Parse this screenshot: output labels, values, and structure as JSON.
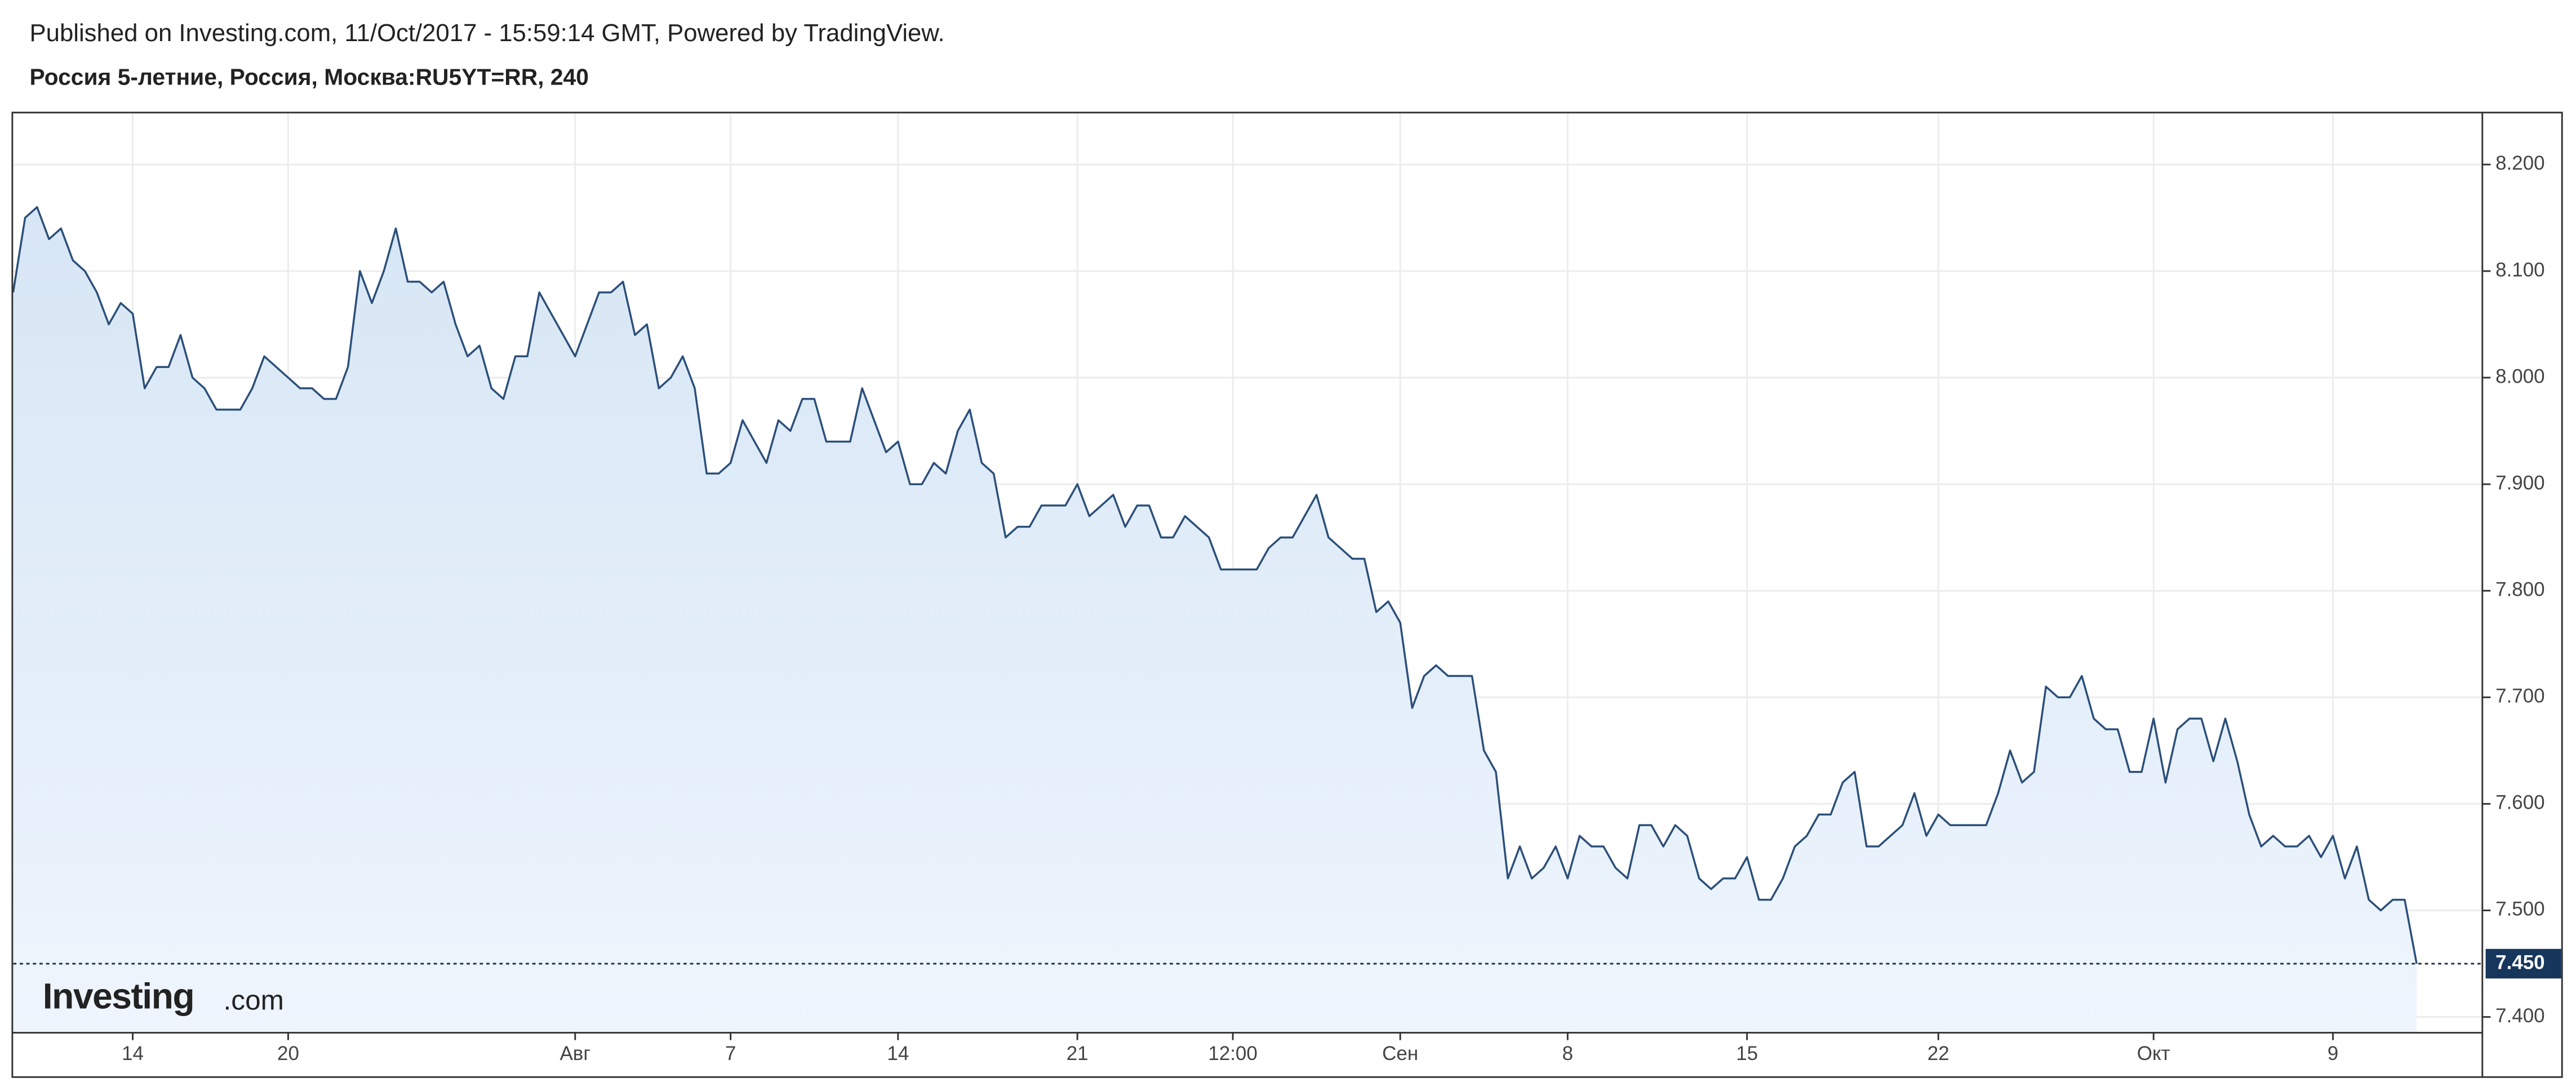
{
  "header": "Published on Investing.com, 11/Oct/2017 - 15:59:14 GMT, Powered by TradingView.",
  "logo": {
    "brand": "Investing",
    "suffix": ".com"
  },
  "chart_data": {
    "type": "line",
    "title": "Россия 5-летние, Россия, Москва:RU5YT=RR, 240",
    "categories": [
      null,
      null,
      null,
      null,
      null,
      null,
      null,
      null,
      null,
      null,
      "14",
      null,
      null,
      null,
      null,
      null,
      null,
      null,
      null,
      null,
      null,
      null,
      null,
      "20",
      null,
      null,
      null,
      null,
      null,
      null,
      null,
      null,
      null,
      null,
      null,
      null,
      null,
      null,
      null,
      null,
      null,
      null,
      null,
      null,
      null,
      null,
      null,
      "Авг",
      null,
      null,
      null,
      null,
      null,
      null,
      null,
      null,
      null,
      null,
      null,
      null,
      "7",
      null,
      null,
      null,
      null,
      null,
      null,
      null,
      null,
      null,
      null,
      null,
      null,
      null,
      "14",
      null,
      null,
      null,
      null,
      null,
      null,
      null,
      null,
      null,
      null,
      null,
      null,
      null,
      null,
      "21",
      null,
      null,
      null,
      null,
      null,
      null,
      null,
      null,
      null,
      null,
      null,
      null,
      "12:00",
      null,
      null,
      null,
      null,
      null,
      null,
      null,
      null,
      null,
      null,
      null,
      null,
      null,
      "Сен",
      null,
      null,
      null,
      null,
      null,
      null,
      null,
      null,
      null,
      null,
      null,
      null,
      null,
      "8",
      null,
      null,
      null,
      null,
      null,
      null,
      null,
      null,
      null,
      null,
      null,
      null,
      null,
      null,
      "15",
      null,
      null,
      null,
      null,
      null,
      null,
      null,
      null,
      null,
      null,
      null,
      null,
      null,
      null,
      null,
      "22",
      null,
      null,
      null,
      null,
      null,
      null,
      null,
      null,
      null,
      null,
      null,
      null,
      null,
      null,
      null,
      null,
      null,
      "Окт",
      null,
      null,
      null,
      null,
      null,
      null,
      null,
      null,
      null,
      null,
      null,
      null,
      null,
      null,
      "9",
      null,
      null,
      null,
      null,
      null,
      null,
      null
    ],
    "series": [
      {
        "color": "#2b4f7a",
        "values": [
          8.08,
          8.15,
          8.16,
          8.13,
          8.14,
          8.11,
          8.1,
          8.08,
          8.05,
          8.07,
          8.06,
          7.99,
          8.01,
          8.01,
          8.04,
          8.0,
          7.99,
          7.97,
          7.97,
          7.97,
          7.99,
          8.02,
          8.01,
          8.0,
          7.99,
          7.99,
          7.98,
          7.98,
          8.01,
          8.1,
          8.07,
          8.1,
          8.14,
          8.09,
          8.09,
          8.08,
          8.09,
          8.05,
          8.02,
          8.03,
          7.99,
          7.98,
          8.02,
          8.02,
          8.08,
          8.06,
          8.04,
          8.02,
          8.05,
          8.08,
          8.08,
          8.09,
          8.04,
          8.05,
          7.99,
          8.0,
          8.02,
          7.99,
          7.91,
          7.91,
          7.92,
          7.96,
          7.94,
          7.92,
          7.96,
          7.95,
          7.98,
          7.98,
          7.94,
          7.94,
          7.94,
          7.99,
          7.96,
          7.93,
          7.94,
          7.9,
          7.9,
          7.92,
          7.91,
          7.95,
          7.97,
          7.92,
          7.91,
          7.85,
          7.86,
          7.86,
          7.88,
          7.88,
          7.88,
          7.9,
          7.87,
          7.88,
          7.89,
          7.86,
          7.88,
          7.88,
          7.85,
          7.85,
          7.87,
          7.86,
          7.85,
          7.82,
          7.82,
          7.82,
          7.82,
          7.84,
          7.85,
          7.85,
          7.87,
          7.89,
          7.85,
          7.84,
          7.83,
          7.83,
          7.78,
          7.79,
          7.77,
          7.69,
          7.72,
          7.73,
          7.72,
          7.72,
          7.72,
          7.65,
          7.63,
          7.53,
          7.56,
          7.53,
          7.54,
          7.56,
          7.53,
          7.57,
          7.56,
          7.56,
          7.54,
          7.53,
          7.58,
          7.58,
          7.56,
          7.58,
          7.57,
          7.53,
          7.52,
          7.53,
          7.53,
          7.55,
          7.51,
          7.51,
          7.53,
          7.56,
          7.57,
          7.59,
          7.59,
          7.62,
          7.63,
          7.56,
          7.56,
          7.57,
          7.58,
          7.61,
          7.57,
          7.59,
          7.58,
          7.58,
          7.58,
          7.58,
          7.61,
          7.65,
          7.62,
          7.63,
          7.71,
          7.7,
          7.7,
          7.72,
          7.68,
          7.67,
          7.67,
          7.63,
          7.63,
          7.68,
          7.62,
          7.67,
          7.68,
          7.68,
          7.64,
          7.68,
          7.64,
          7.59,
          7.56,
          7.57,
          7.56,
          7.56,
          7.57,
          7.55,
          7.57,
          7.53,
          7.56,
          7.51,
          7.5,
          7.51,
          7.51,
          7.45
        ]
      }
    ],
    "current_price": {
      "value": 7.45,
      "label": "7.450"
    },
    "ylim": [
      7.386,
      8.248
    ],
    "yticks": [
      {
        "value": 7.4,
        "label": "7.400"
      },
      {
        "value": 7.5,
        "label": "7.500"
      },
      {
        "value": 7.6,
        "label": "7.600"
      },
      {
        "value": 7.7,
        "label": "7.700"
      },
      {
        "value": 7.8,
        "label": "7.800"
      },
      {
        "value": 7.9,
        "label": "7.900"
      },
      {
        "value": 8.0,
        "label": "8.000"
      },
      {
        "value": 8.1,
        "label": "8.100"
      },
      {
        "value": 8.2,
        "label": "8.200"
      }
    ],
    "grid": true
  }
}
